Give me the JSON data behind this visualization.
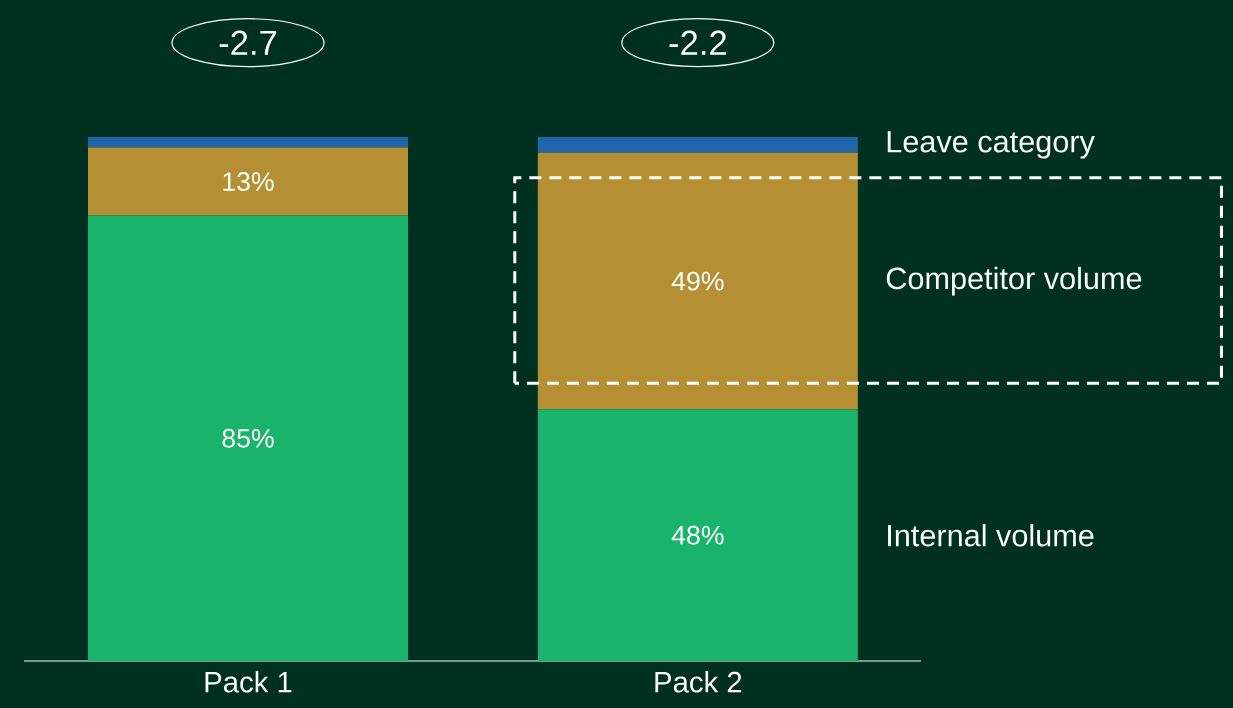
{
  "chart_data": {
    "type": "bar",
    "stacked": true,
    "data_labels": false,
    "legend": "right",
    "categories": [
      "Pack 1",
      "Pack 2"
    ],
    "series": [
      {
        "name": "Internal volume",
        "color": "#19b36b",
        "values": [
          85,
          48
        ],
        "value_labels": [
          "85%",
          "48%"
        ]
      },
      {
        "name": "Competitor volume",
        "color": "#b58f33",
        "values": [
          13,
          49
        ],
        "value_labels": [
          "13%",
          "49%"
        ]
      },
      {
        "name": "Leave category",
        "color": "#2066a8",
        "values": [
          2,
          3
        ],
        "value_labels": [
          null,
          null
        ]
      }
    ],
    "annotations": [
      "-2.7",
      "-2.2"
    ]
  }
}
